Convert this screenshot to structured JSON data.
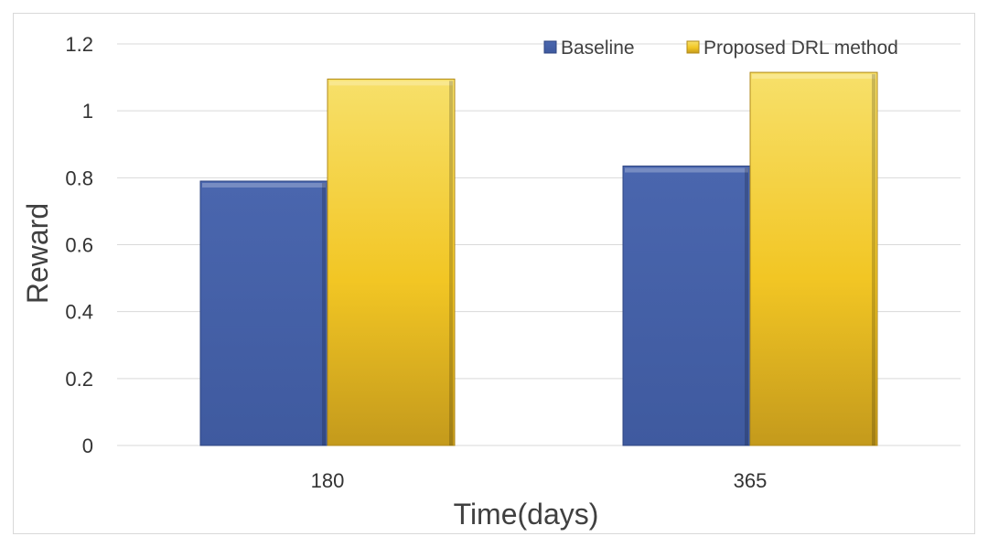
{
  "chart_data": {
    "type": "bar",
    "categories": [
      "180",
      "365"
    ],
    "series": [
      {
        "name": "Baseline",
        "values": [
          0.79,
          0.835
        ],
        "color": "#4560a8"
      },
      {
        "name": "Proposed DRL method",
        "values": [
          1.095,
          1.115
        ],
        "color": "#f2c624"
      }
    ],
    "xlabel": "Time(days)",
    "ylabel": "Reward",
    "ylim": [
      0,
      1.2
    ],
    "yticks": [
      "0",
      "0.2",
      "0.4",
      "0.6",
      "0.8",
      "1",
      "1.2"
    ],
    "grid": true,
    "legend_position": "top-right"
  }
}
